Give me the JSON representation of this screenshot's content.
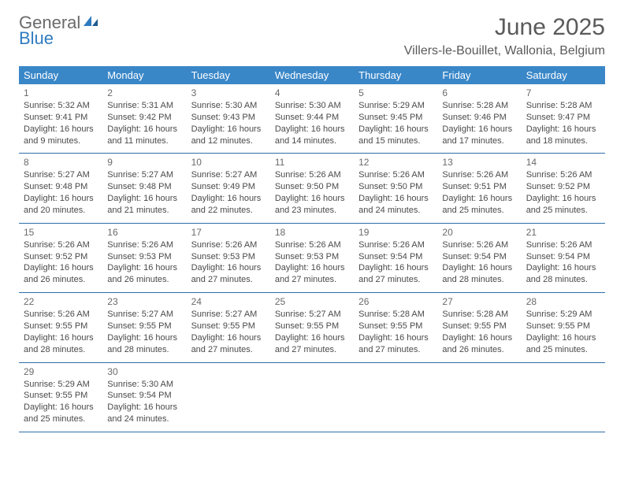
{
  "logo": {
    "text1": "General",
    "text2": "Blue"
  },
  "title": "June 2025",
  "location": "Villers-le-Bouillet, Wallonia, Belgium",
  "colors": {
    "header_bg": "#3a87c8",
    "header_text": "#ffffff",
    "row_divider": "#2f6ea8",
    "body_text": "#4a4a4a",
    "logo_gray": "#6a6a6a",
    "logo_blue": "#2f7bbf",
    "background": "#ffffff"
  },
  "daynames": [
    "Sunday",
    "Monday",
    "Tuesday",
    "Wednesday",
    "Thursday",
    "Friday",
    "Saturday"
  ],
  "weeks": [
    [
      {
        "n": "1",
        "sr": "5:32 AM",
        "ss": "9:41 PM",
        "dl": "16 hours and 9 minutes."
      },
      {
        "n": "2",
        "sr": "5:31 AM",
        "ss": "9:42 PM",
        "dl": "16 hours and 11 minutes."
      },
      {
        "n": "3",
        "sr": "5:30 AM",
        "ss": "9:43 PM",
        "dl": "16 hours and 12 minutes."
      },
      {
        "n": "4",
        "sr": "5:30 AM",
        "ss": "9:44 PM",
        "dl": "16 hours and 14 minutes."
      },
      {
        "n": "5",
        "sr": "5:29 AM",
        "ss": "9:45 PM",
        "dl": "16 hours and 15 minutes."
      },
      {
        "n": "6",
        "sr": "5:28 AM",
        "ss": "9:46 PM",
        "dl": "16 hours and 17 minutes."
      },
      {
        "n": "7",
        "sr": "5:28 AM",
        "ss": "9:47 PM",
        "dl": "16 hours and 18 minutes."
      }
    ],
    [
      {
        "n": "8",
        "sr": "5:27 AM",
        "ss": "9:48 PM",
        "dl": "16 hours and 20 minutes."
      },
      {
        "n": "9",
        "sr": "5:27 AM",
        "ss": "9:48 PM",
        "dl": "16 hours and 21 minutes."
      },
      {
        "n": "10",
        "sr": "5:27 AM",
        "ss": "9:49 PM",
        "dl": "16 hours and 22 minutes."
      },
      {
        "n": "11",
        "sr": "5:26 AM",
        "ss": "9:50 PM",
        "dl": "16 hours and 23 minutes."
      },
      {
        "n": "12",
        "sr": "5:26 AM",
        "ss": "9:50 PM",
        "dl": "16 hours and 24 minutes."
      },
      {
        "n": "13",
        "sr": "5:26 AM",
        "ss": "9:51 PM",
        "dl": "16 hours and 25 minutes."
      },
      {
        "n": "14",
        "sr": "5:26 AM",
        "ss": "9:52 PM",
        "dl": "16 hours and 25 minutes."
      }
    ],
    [
      {
        "n": "15",
        "sr": "5:26 AM",
        "ss": "9:52 PM",
        "dl": "16 hours and 26 minutes."
      },
      {
        "n": "16",
        "sr": "5:26 AM",
        "ss": "9:53 PM",
        "dl": "16 hours and 26 minutes."
      },
      {
        "n": "17",
        "sr": "5:26 AM",
        "ss": "9:53 PM",
        "dl": "16 hours and 27 minutes."
      },
      {
        "n": "18",
        "sr": "5:26 AM",
        "ss": "9:53 PM",
        "dl": "16 hours and 27 minutes."
      },
      {
        "n": "19",
        "sr": "5:26 AM",
        "ss": "9:54 PM",
        "dl": "16 hours and 27 minutes."
      },
      {
        "n": "20",
        "sr": "5:26 AM",
        "ss": "9:54 PM",
        "dl": "16 hours and 28 minutes."
      },
      {
        "n": "21",
        "sr": "5:26 AM",
        "ss": "9:54 PM",
        "dl": "16 hours and 28 minutes."
      }
    ],
    [
      {
        "n": "22",
        "sr": "5:26 AM",
        "ss": "9:55 PM",
        "dl": "16 hours and 28 minutes."
      },
      {
        "n": "23",
        "sr": "5:27 AM",
        "ss": "9:55 PM",
        "dl": "16 hours and 28 minutes."
      },
      {
        "n": "24",
        "sr": "5:27 AM",
        "ss": "9:55 PM",
        "dl": "16 hours and 27 minutes."
      },
      {
        "n": "25",
        "sr": "5:27 AM",
        "ss": "9:55 PM",
        "dl": "16 hours and 27 minutes."
      },
      {
        "n": "26",
        "sr": "5:28 AM",
        "ss": "9:55 PM",
        "dl": "16 hours and 27 minutes."
      },
      {
        "n": "27",
        "sr": "5:28 AM",
        "ss": "9:55 PM",
        "dl": "16 hours and 26 minutes."
      },
      {
        "n": "28",
        "sr": "5:29 AM",
        "ss": "9:55 PM",
        "dl": "16 hours and 25 minutes."
      }
    ],
    [
      {
        "n": "29",
        "sr": "5:29 AM",
        "ss": "9:55 PM",
        "dl": "16 hours and 25 minutes."
      },
      {
        "n": "30",
        "sr": "5:30 AM",
        "ss": "9:54 PM",
        "dl": "16 hours and 24 minutes."
      },
      null,
      null,
      null,
      null,
      null
    ]
  ],
  "labels": {
    "sunrise": "Sunrise: ",
    "sunset": "Sunset: ",
    "daylight": "Daylight: "
  }
}
